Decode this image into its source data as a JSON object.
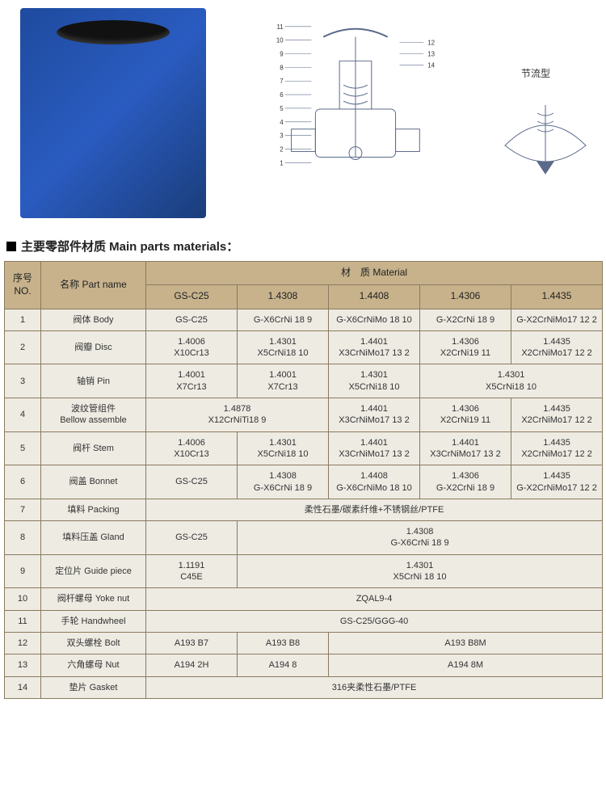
{
  "small_diagram_label": "节流型",
  "section_title": "主要零部件材质 Main parts materials：",
  "columns": {
    "no": "序号NO.",
    "partname": "名称 Part name",
    "material_group": "材　质 Material",
    "mats": [
      "GS-C25",
      "1.4308",
      "1.4408",
      "1.4306",
      "1.4435"
    ]
  },
  "rows": [
    {
      "no": "1",
      "name": "阀体 Body",
      "cells": [
        {
          "t": "GS-C25"
        },
        {
          "t": "G-X6CrNi 18 9"
        },
        {
          "t": "G-X6CrNiMo 18 10"
        },
        {
          "t": "G-X2CrNi 18 9"
        },
        {
          "t": "G-X2CrNiMo17 12 2"
        }
      ]
    },
    {
      "no": "2",
      "name": "阀瓣 Disc",
      "cells": [
        {
          "t": "1.4006\nX10Cr13"
        },
        {
          "t": "1.4301\nX5CrNi18 10"
        },
        {
          "t": "1.4401\nX3CrNiMo17 13 2"
        },
        {
          "t": "1.4306\nX2CrNi19 11"
        },
        {
          "t": "1.4435\nX2CrNiMo17 12 2"
        }
      ]
    },
    {
      "no": "3",
      "name": "轴销 Pin",
      "cells": [
        {
          "t": "1.4001\nX7Cr13"
        },
        {
          "t": "1.4001\nX7Cr13"
        },
        {
          "t": "1.4301\nX5CrNi18 10"
        },
        {
          "t": "1.4301\nX5CrNi18 10",
          "span": 2
        }
      ]
    },
    {
      "no": "4",
      "name": "波纹管组件\nBellow assemble",
      "cells": [
        {
          "t": "1.4878\nX12CrNiTi18 9",
          "span": 2
        },
        {
          "t": "1.4401\nX3CrNiMo17 13 2"
        },
        {
          "t": "1.4306\nX2CrNi19 11"
        },
        {
          "t": "1.4435\nX2CrNiMo17 12 2"
        }
      ]
    },
    {
      "no": "5",
      "name": "阀杆 Stem",
      "cells": [
        {
          "t": "1.4006\nX10Cr13"
        },
        {
          "t": "1.4301\nX5CrNi18 10"
        },
        {
          "t": "1.4401\nX3CrNiMo17 13 2"
        },
        {
          "t": "1.4401\nX3CrNiMo17 13 2"
        },
        {
          "t": "1.4435\nX2CrNiMo17 12 2"
        }
      ]
    },
    {
      "no": "6",
      "name": "阀盖 Bonnet",
      "cells": [
        {
          "t": "GS-C25"
        },
        {
          "t": "1.4308\nG-X6CrNi 18 9"
        },
        {
          "t": "1.4408\nG-X6CrNiMo 18 10"
        },
        {
          "t": "1.4306\nG-X2CrNi 18 9"
        },
        {
          "t": "1.4435\nG-X2CrNiMo17 12 2"
        }
      ]
    },
    {
      "no": "7",
      "name": "填料 Packing",
      "cells": [
        {
          "t": "柔性石墨/碳素纤维+不锈钢丝/PTFE",
          "span": 5
        }
      ]
    },
    {
      "no": "8",
      "name": "填料压盖 Gland",
      "cells": [
        {
          "t": "GS-C25"
        },
        {
          "t": "1.4308\nG-X6CrNi 18 9",
          "span": 4
        }
      ]
    },
    {
      "no": "9",
      "name": "定位片 Guide piece",
      "cells": [
        {
          "t": "1.1191\nC45E"
        },
        {
          "t": "1.4301\nX5CrNi 18 10",
          "span": 4
        }
      ]
    },
    {
      "no": "10",
      "name": "阀杆螺母 Yoke nut",
      "cells": [
        {
          "t": "ZQAL9-4",
          "span": 5
        }
      ]
    },
    {
      "no": "11",
      "name": "手轮 Handwheel",
      "cells": [
        {
          "t": "GS-C25/GGG-40",
          "span": 5
        }
      ]
    },
    {
      "no": "12",
      "name": "双头螺栓 Bolt",
      "cells": [
        {
          "t": "A193  B7"
        },
        {
          "t": "A193  B8"
        },
        {
          "t": "A193  B8M",
          "span": 3
        }
      ]
    },
    {
      "no": "13",
      "name": "六角螺母 Nut",
      "cells": [
        {
          "t": "A194  2H"
        },
        {
          "t": "A194  8"
        },
        {
          "t": "A194  8M",
          "span": 3
        }
      ]
    },
    {
      "no": "14",
      "name": "垫片 Gasket",
      "cells": [
        {
          "t": "316夹柔性石墨/PTFE",
          "span": 5
        }
      ]
    }
  ],
  "diagram_labels": [
    "1",
    "2",
    "3",
    "4",
    "5",
    "6",
    "7",
    "8",
    "9",
    "10",
    "11",
    "12",
    "13",
    "14"
  ],
  "colors": {
    "header_bg": "#c7b28c",
    "cell_bg": "#eeebe3",
    "border": "#8a7a5e",
    "valve_blue": "#2a5bc0"
  }
}
